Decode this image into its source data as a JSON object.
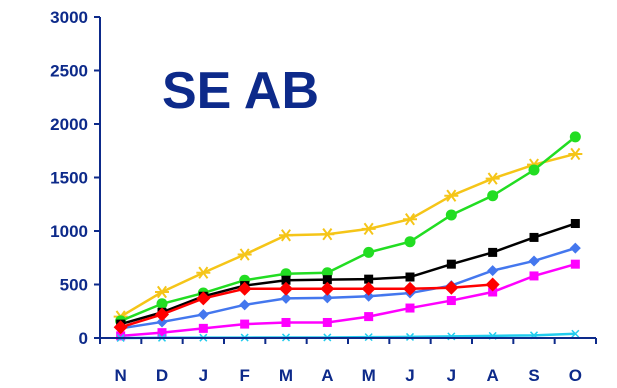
{
  "chart_data": {
    "type": "line",
    "title": "SE AB",
    "categories": [
      "N",
      "D",
      "J",
      "F",
      "M",
      "A",
      "M",
      "J",
      "J",
      "A",
      "S",
      "O"
    ],
    "ylim": [
      0,
      3000
    ],
    "yticks": [
      0,
      500,
      1000,
      1500,
      2000,
      2500,
      3000
    ],
    "grid": false,
    "series": [
      {
        "color": "#f5c518",
        "marker": "asterisk",
        "values": [
          200,
          430,
          610,
          780,
          960,
          970,
          1020,
          1110,
          1330,
          1490,
          1620,
          1720
        ]
      },
      {
        "color": "#22dd22",
        "marker": "circle",
        "values": [
          160,
          320,
          420,
          540,
          600,
          610,
          800,
          900,
          1150,
          1330,
          1570,
          1880
        ]
      },
      {
        "color": "#000000",
        "marker": "square",
        "values": [
          130,
          240,
          390,
          490,
          540,
          545,
          550,
          570,
          690,
          800,
          940,
          1070
        ]
      },
      {
        "color": "#4477ee",
        "marker": "diamond",
        "values": [
          90,
          150,
          220,
          310,
          370,
          375,
          390,
          420,
          490,
          630,
          720,
          840
        ]
      },
      {
        "color": "#ff00ff",
        "marker": "square",
        "values": [
          20,
          50,
          90,
          130,
          145,
          145,
          200,
          280,
          350,
          430,
          580,
          690
        ]
      },
      {
        "color": "#22ccee",
        "marker": "x",
        "values": [
          0,
          2,
          3,
          4,
          5,
          5,
          8,
          10,
          15,
          20,
          25,
          40
        ]
      },
      {
        "color": "#ff0000",
        "marker": "diamond",
        "values": [
          100,
          220,
          370,
          460,
          460,
          460,
          460,
          460,
          470,
          500,
          null,
          null
        ]
      }
    ]
  }
}
